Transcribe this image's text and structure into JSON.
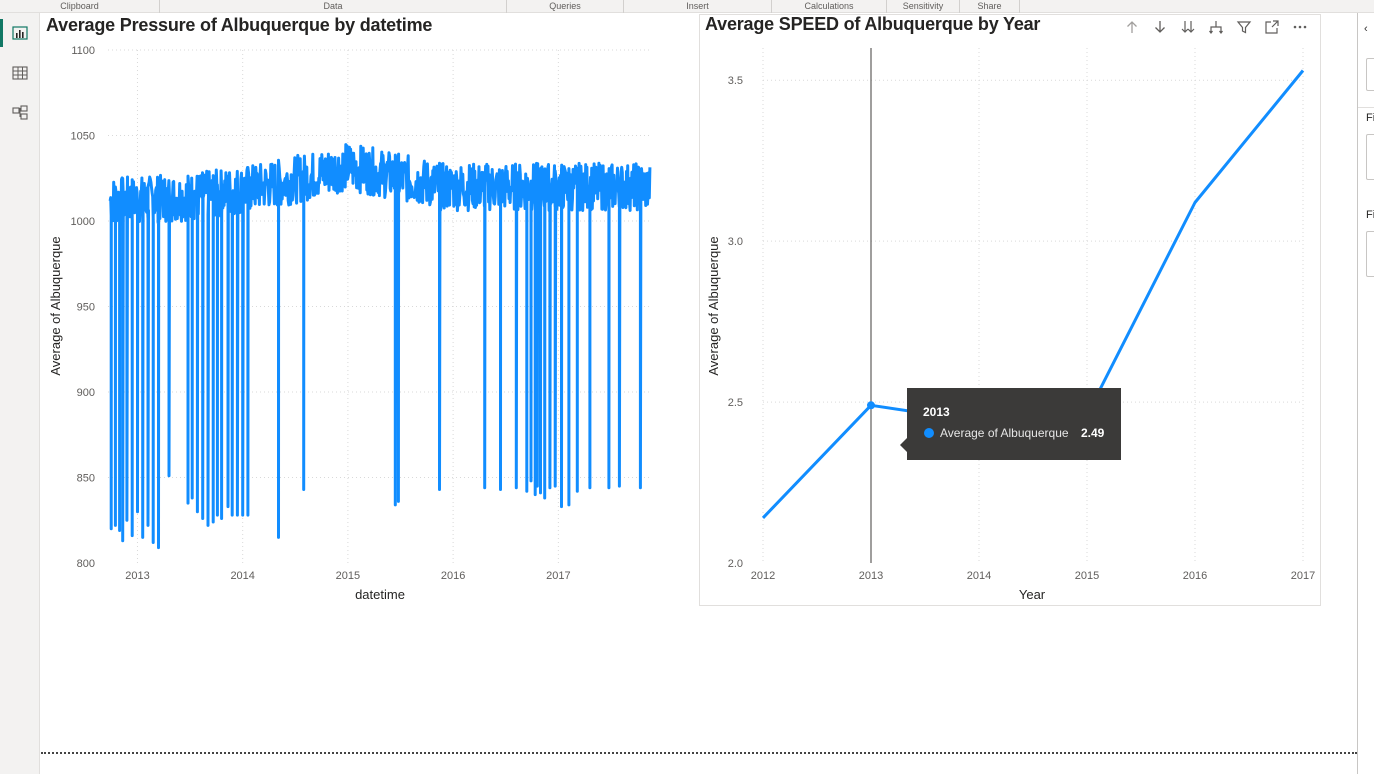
{
  "ribbon": {
    "groups": [
      "Clipboard",
      "Data",
      "Queries",
      "Insert",
      "Calculations",
      "Sensitivity",
      "Share"
    ]
  },
  "left_rail": {
    "items": [
      {
        "name": "report-view",
        "icon": "bar-chart-icon",
        "active": true
      },
      {
        "name": "table-view",
        "icon": "table-grid-icon",
        "active": false
      },
      {
        "name": "model-view",
        "icon": "model-diagram-icon",
        "active": false
      }
    ]
  },
  "right_pane": {
    "label_1": "Fi",
    "label_2": "Fi"
  },
  "colors": {
    "series": "#118dff",
    "tooltip_bg": "#3b3a39",
    "accent": "#117865"
  },
  "visual_header_icons": [
    "arrow-up-icon",
    "arrow-down-icon",
    "double-arrow-down-icon",
    "expand-hierarchy-icon",
    "filter-icon",
    "focus-mode-icon",
    "more-options-icon"
  ],
  "tooltip": {
    "title": "2013",
    "label": "Average of Albuquerque",
    "value": "2.49"
  },
  "chart_data": [
    {
      "type": "line",
      "title": "Average Pressure of Albuquerque by datetime",
      "xlabel": "datetime",
      "ylabel": "Average of Albuquerque",
      "ylim": [
        800,
        1100
      ],
      "yticks": [
        800,
        850,
        900,
        950,
        1000,
        1050,
        1100
      ],
      "xticks": [
        "2013",
        "2014",
        "2015",
        "2016",
        "2017"
      ],
      "xlim": [
        2012.72,
        2017.89
      ],
      "baseline_start": 1012,
      "baseline_peak": 1032,
      "peak_x": 2015.0,
      "baseline_end": 1020,
      "noise_band": 14,
      "spikes": [
        [
          2012.75,
          820
        ],
        [
          2012.79,
          822
        ],
        [
          2012.83,
          819
        ],
        [
          2012.86,
          813
        ],
        [
          2012.9,
          825
        ],
        [
          2012.95,
          816
        ],
        [
          2013.0,
          830
        ],
        [
          2013.05,
          815
        ],
        [
          2013.1,
          822
        ],
        [
          2013.15,
          812
        ],
        [
          2013.2,
          809
        ],
        [
          2013.3,
          851
        ],
        [
          2013.48,
          835
        ],
        [
          2013.52,
          838
        ],
        [
          2013.57,
          830
        ],
        [
          2013.62,
          826
        ],
        [
          2013.67,
          822
        ],
        [
          2013.72,
          824
        ],
        [
          2013.76,
          828
        ],
        [
          2013.8,
          826
        ],
        [
          2013.86,
          833
        ],
        [
          2013.9,
          828
        ],
        [
          2013.95,
          828
        ],
        [
          2014.0,
          828
        ],
        [
          2014.05,
          828
        ],
        [
          2014.34,
          815
        ],
        [
          2014.58,
          843
        ],
        [
          2015.45,
          834
        ],
        [
          2015.48,
          836
        ],
        [
          2015.87,
          843
        ],
        [
          2016.3,
          844
        ],
        [
          2016.45,
          843
        ],
        [
          2016.6,
          844
        ],
        [
          2016.7,
          842
        ],
        [
          2016.74,
          848
        ],
        [
          2016.78,
          840
        ],
        [
          2016.8,
          845
        ],
        [
          2016.83,
          841
        ],
        [
          2016.87,
          838
        ],
        [
          2016.92,
          844
        ],
        [
          2016.97,
          845
        ],
        [
          2017.03,
          833
        ],
        [
          2017.1,
          834
        ],
        [
          2017.18,
          842
        ],
        [
          2017.3,
          844
        ],
        [
          2017.48,
          844
        ],
        [
          2017.58,
          845
        ],
        [
          2017.78,
          844
        ]
      ]
    },
    {
      "type": "line",
      "title": "Average SPEED of Albuquerque by Year",
      "xlabel": "Year",
      "ylabel": "Average of Albuquerque",
      "ylim": [
        2.0,
        3.6
      ],
      "yticks": [
        "2.0",
        "2.5",
        "3.0",
        "3.5"
      ],
      "categories": [
        "2012",
        "2013",
        "2014",
        "2015",
        "2016",
        "2017"
      ],
      "values": [
        2.14,
        2.49,
        2.44,
        2.46,
        3.12,
        3.53
      ],
      "highlight_index": 1
    }
  ]
}
